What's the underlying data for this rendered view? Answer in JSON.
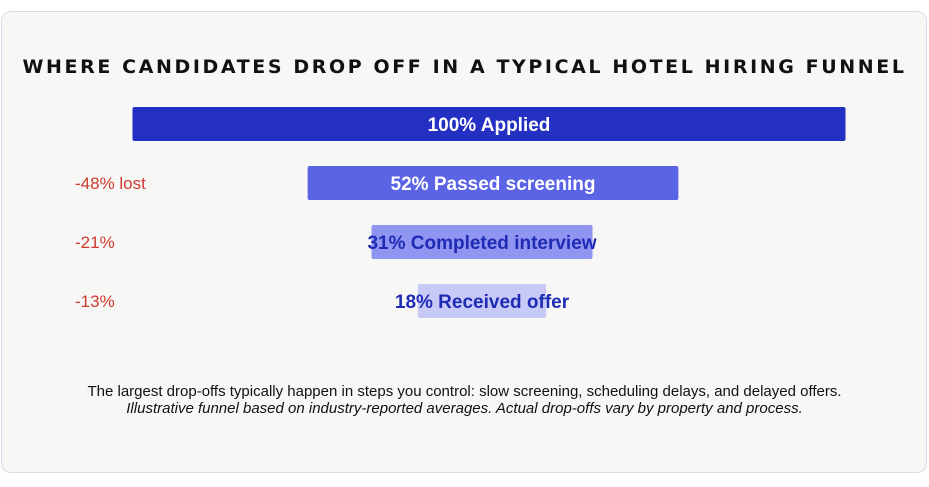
{
  "chart_data": {
    "type": "bar",
    "title": "WHERE CANDIDATES DROP OFF IN A TYPICAL HOTEL HIRING FUNNEL",
    "categories": [
      "Applied",
      "Passed screening",
      "Completed interview",
      "Received offer"
    ],
    "values": [
      100,
      52,
      31,
      18
    ],
    "bar_labels": [
      "100% Applied",
      "52% Passed screening",
      "31% Completed interview",
      "18% Received offer"
    ],
    "drop_labels": [
      "",
      "-48% lost",
      "-21%",
      "-13%"
    ],
    "colors": {
      "bars": [
        "#2430c2",
        "#5c64e6",
        "#9095f1",
        "#c7caf7"
      ],
      "bar_text": [
        "#ffffff",
        "#ffffff",
        "#1f2bb5",
        "#1f2bb5"
      ],
      "drop_text": "#cf3a2f"
    },
    "ylim": [
      0,
      100
    ],
    "grid": false,
    "legend": "none"
  },
  "footer": {
    "line1": "The largest drop-offs typically happen in steps you control: slow screening, scheduling delays, and delayed offers.",
    "line2": "Illustrative funnel based on industry-reported averages. Actual drop-offs vary by property and process."
  }
}
